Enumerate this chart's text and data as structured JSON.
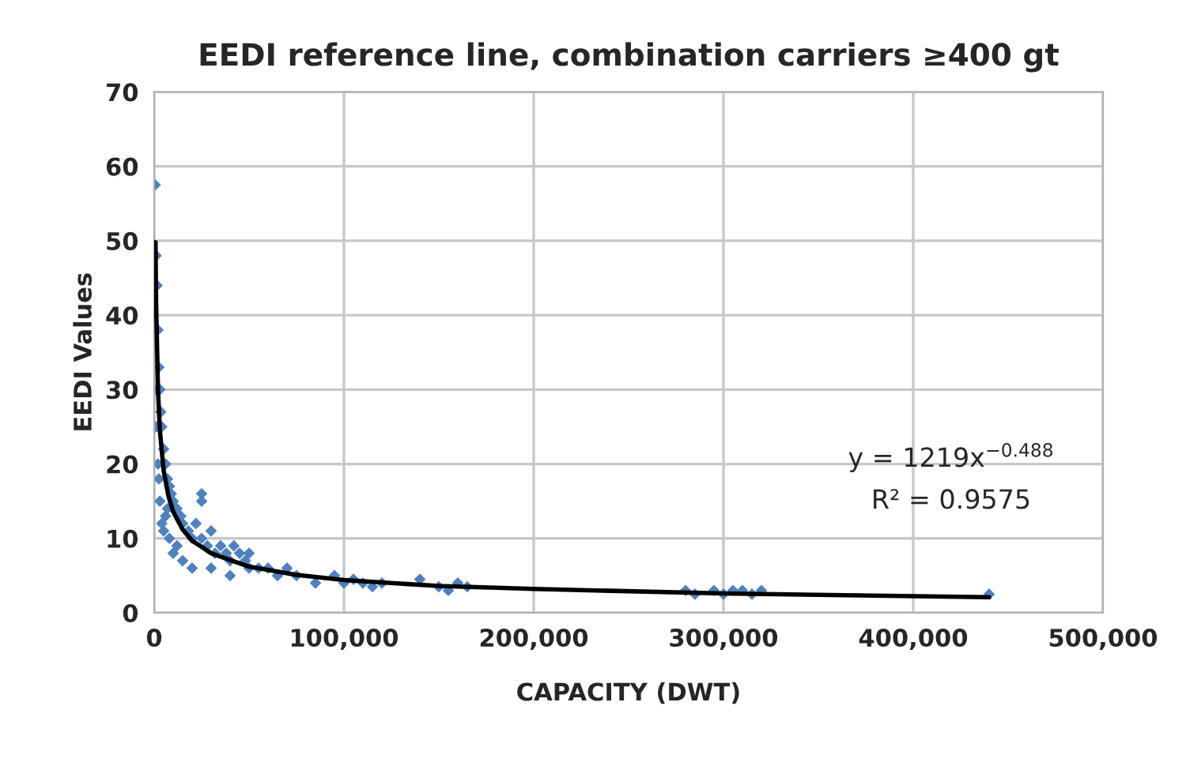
{
  "chart_data": {
    "type": "scatter",
    "title": "EEDI reference line, combination carriers ≥400 gt",
    "xlabel": "CAPACITY (DWT)",
    "ylabel": "EEDI Values",
    "xlim": [
      0,
      500000
    ],
    "xticks": [
      0,
      {
        "value": 100000,
        "label": "100,000"
      },
      {
        "value": 200000,
        "label": "200,000"
      },
      {
        "value": 300000,
        "label": "300,000"
      },
      {
        "value": 400000,
        "label": "400,000"
      },
      {
        "value": 500000,
        "label": "500,000"
      }
    ],
    "ylim": [
      0,
      70
    ],
    "yticks": [
      0,
      10,
      20,
      30,
      40,
      50,
      60,
      70
    ],
    "grid": true,
    "legend": false,
    "series": [
      {
        "color": "#4f81bd",
        "marker": "diamond",
        "x": [
          500,
          1000,
          1500,
          2000,
          2500,
          3000,
          3500,
          4000,
          5000,
          6000,
          7000,
          8000,
          9000,
          10000,
          3000,
          4000,
          5000,
          6000,
          12000,
          14000,
          15000,
          18000,
          20000,
          22000,
          25000,
          28000,
          30000,
          32000,
          35000,
          38000,
          40000,
          42000,
          45000,
          48000,
          50000,
          55000,
          25000,
          25000,
          8000,
          12000,
          10000,
          15000,
          20000,
          30000,
          40000,
          50000,
          60000,
          65000,
          70000,
          75000,
          85000,
          95000,
          100000,
          105000,
          110000,
          115000,
          120000,
          140000,
          150000,
          155000,
          160000,
          165000,
          280000,
          285000,
          295000,
          300000,
          305000,
          310000,
          315000,
          320000,
          440000,
          2000,
          1000,
          1500,
          2500,
          7000
        ],
        "values": [
          57.5,
          48,
          44,
          38,
          33,
          30,
          27,
          25,
          22,
          20,
          18,
          17,
          16,
          15,
          15,
          12,
          11,
          13,
          14,
          13,
          12,
          11,
          10,
          12,
          10,
          9,
          11,
          8,
          9,
          8,
          7,
          9,
          8,
          7,
          6,
          6,
          16,
          15,
          10,
          9,
          8,
          7,
          6,
          6,
          5,
          8,
          6,
          5,
          6,
          5,
          4,
          5,
          4,
          4.5,
          4,
          3.5,
          4,
          4.5,
          3.5,
          3,
          4,
          3.5,
          3,
          2.5,
          3,
          2.5,
          3,
          3,
          2.5,
          3,
          2.5,
          20,
          25,
          30,
          18,
          14
        ]
      },
      {
        "type": "line",
        "color": "#000000",
        "marker": "none",
        "line_style": "solid",
        "x": [
          700,
          1000,
          2000,
          3000,
          5000,
          7500,
          10000,
          15000,
          20000,
          30000,
          50000,
          75000,
          100000,
          150000,
          200000,
          300000,
          440000
        ],
        "values": [
          49.8,
          41.9,
          29.9,
          24.5,
          19.1,
          15.7,
          13.6,
          11.2,
          9.7,
          8.0,
          6.2,
          5.1,
          4.4,
          3.6,
          3.2,
          2.6,
          2.1
        ]
      }
    ],
    "annotations": [
      "y = 1219x$^{−0.488}$",
      "R² = 0.9575"
    ]
  }
}
